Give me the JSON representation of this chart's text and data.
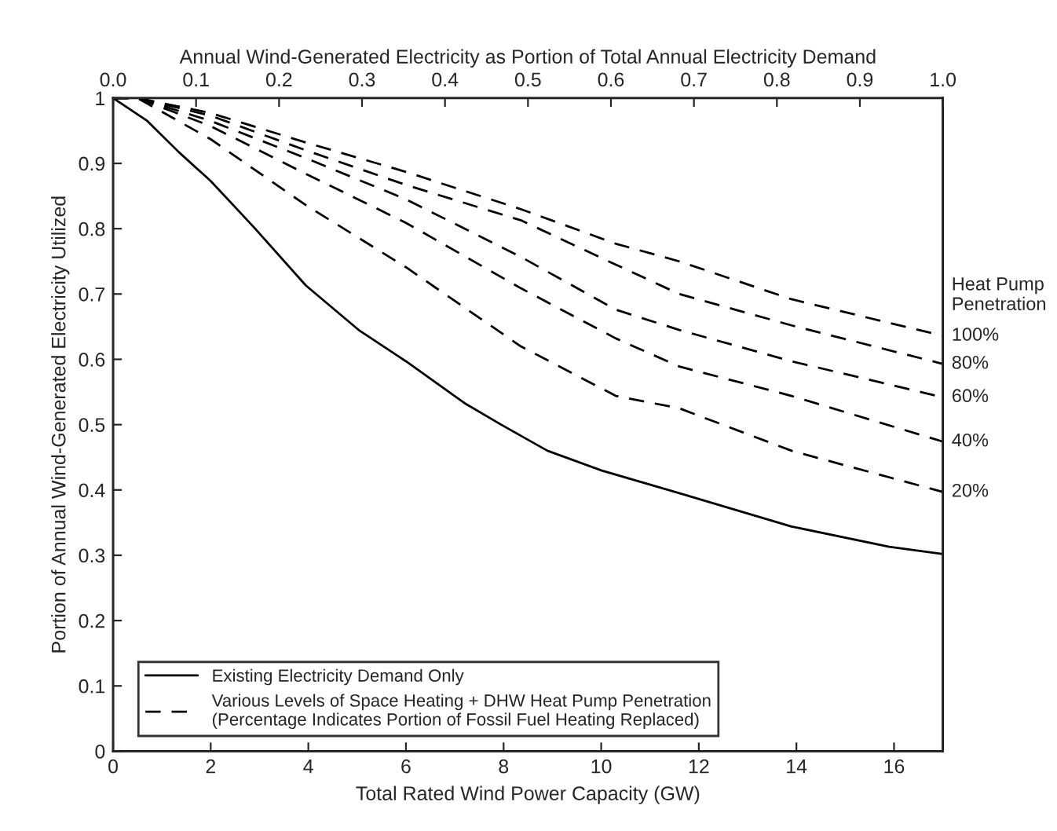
{
  "chart_data": {
    "type": "line",
    "xlabel": "Total Rated Wind Power Capacity (GW)",
    "ylabel": "Portion of Annual Wind-Generated Electricity Utilized",
    "x2label": "Annual Wind-Generated Electricity as Portion of Total Annual Electricity Demand",
    "xlim": [
      0,
      17
    ],
    "xticks": [
      0,
      2,
      4,
      6,
      8,
      10,
      12,
      14,
      16
    ],
    "ylim": [
      0,
      1
    ],
    "yticks": [
      0,
      0.1,
      0.2,
      0.3,
      0.4,
      0.5,
      0.6,
      0.7,
      0.8,
      0.9,
      1
    ],
    "x2lim": [
      0,
      1
    ],
    "x2ticks": [
      {
        "value": 0,
        "label": "0.0"
      },
      0.1,
      0.2,
      0.3,
      0.4,
      0.5,
      0.6,
      0.7,
      0.8,
      0.9,
      {
        "value": 1,
        "label": "1.0"
      }
    ],
    "grid": false,
    "legend": "bottom left",
    "marker": "none",
    "legend_title": "Heat Pump Penetration",
    "annotations": [
      "Various Levels of Space Heating + DHW Heat Pump Penetration\n(Percentage Indicates Portion of Fossil Fuel Heating Replaced)"
    ],
    "series": [
      {
        "name": "Existing Electricity Demand Only",
        "color": "#000000",
        "line_style": "solid",
        "x": [
          0,
          0.7,
          1.35,
          2,
          2.9,
          3.95,
          5.03,
          6,
          7.2,
          7.95,
          8.9,
          10,
          11.6,
          13.9,
          15.9,
          17
        ],
        "values": [
          1,
          0.965,
          0.917,
          0.873,
          0.801,
          0.713,
          0.645,
          0.597,
          0.533,
          0.5,
          0.46,
          0.43,
          0.395,
          0.344,
          0.313,
          0.302
        ]
      },
      {
        "name": "100%",
        "color": "#000000",
        "line_style": "dashed",
        "x": [
          0,
          0.5,
          2,
          3.95,
          6,
          8.35,
          10.3,
          11.6,
          13.9,
          17
        ],
        "values": [
          1,
          1,
          0.977,
          0.932,
          0.887,
          0.83,
          0.777,
          0.75,
          0.692,
          0.636
        ]
      },
      {
        "name": "80%",
        "color": "#000000",
        "line_style": "dashed",
        "x": [
          0,
          0.5,
          2,
          3.95,
          6,
          8.35,
          10.3,
          11.6,
          13.9,
          17
        ],
        "values": [
          1,
          1,
          0.973,
          0.92,
          0.867,
          0.813,
          0.745,
          0.7,
          0.652,
          0.593
        ]
      },
      {
        "name": "60%",
        "color": "#000000",
        "line_style": "dashed",
        "x": [
          0,
          0.5,
          2,
          3.95,
          6,
          8.35,
          10.3,
          11.6,
          13.9,
          17
        ],
        "values": [
          1,
          1,
          0.965,
          0.908,
          0.845,
          0.757,
          0.676,
          0.645,
          0.597,
          0.542
        ]
      },
      {
        "name": "40%",
        "color": "#000000",
        "line_style": "dashed",
        "x": [
          0,
          0.5,
          2,
          3.95,
          6,
          8.35,
          10.3,
          11.6,
          13.9,
          17
        ],
        "values": [
          1,
          1,
          0.957,
          0.884,
          0.809,
          0.709,
          0.632,
          0.589,
          0.544,
          0.474
        ]
      },
      {
        "name": "20%",
        "color": "#000000",
        "line_style": "dashed",
        "x": [
          0,
          0.5,
          2,
          3.95,
          6,
          8.35,
          10.3,
          11.6,
          13.9,
          17
        ],
        "values": [
          1,
          1,
          0.937,
          0.836,
          0.741,
          0.62,
          0.544,
          0.525,
          0.46,
          0.397
        ]
      }
    ]
  }
}
